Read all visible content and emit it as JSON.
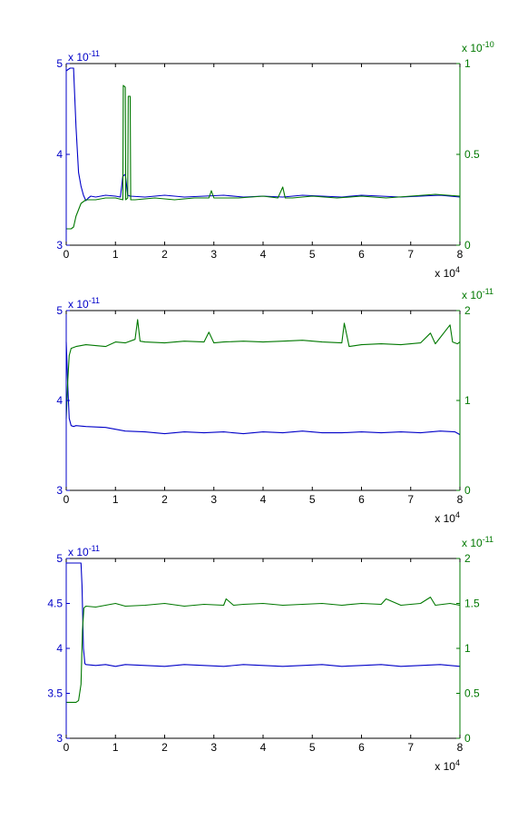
{
  "colors": {
    "left_axis": "#0000c8",
    "right_axis": "#007800",
    "axis": "#000000",
    "background": "#ffffff"
  },
  "chart_data": [
    {
      "type": "line",
      "xlim": [
        0,
        8
      ],
      "xticks": [
        "0",
        "1",
        "2",
        "3",
        "4",
        "5",
        "6",
        "7",
        "8"
      ],
      "x_multiplier": [
        "x 10",
        "4"
      ],
      "y_left": {
        "lim": [
          3,
          5
        ],
        "ticks": [
          "3",
          "4",
          "5"
        ],
        "ticks_at": [
          3,
          4,
          5
        ],
        "multiplier": [
          "x 10",
          "-11"
        ],
        "color": "#0000c8"
      },
      "y_right": {
        "lim": [
          0,
          1
        ],
        "ticks": [
          "0",
          "0.5",
          "1"
        ],
        "ticks_at": [
          0,
          0.5,
          1
        ],
        "multiplier": [
          "x 10",
          "-10"
        ],
        "color": "#007800"
      },
      "series": [
        {
          "axis": "left",
          "color": "#0000c8",
          "x": [
            0,
            0.08,
            0.15,
            0.16,
            0.2,
            0.25,
            0.3,
            0.35,
            0.4,
            0.45,
            0.5,
            0.6,
            0.8,
            1.0,
            1.1,
            1.15,
            1.2,
            1.25,
            1.3,
            1.6,
            2.0,
            2.4,
            2.8,
            3.2,
            3.6,
            4.0,
            4.4,
            4.8,
            5.2,
            5.6,
            6.0,
            6.4,
            6.8,
            7.2,
            7.6,
            8.0
          ],
          "y": [
            4.92,
            4.95,
            4.95,
            4.8,
            4.3,
            3.8,
            3.65,
            3.55,
            3.49,
            3.52,
            3.54,
            3.53,
            3.55,
            3.54,
            3.53,
            3.76,
            3.78,
            3.55,
            3.54,
            3.53,
            3.55,
            3.53,
            3.54,
            3.55,
            3.53,
            3.54,
            3.53,
            3.55,
            3.54,
            3.53,
            3.55,
            3.54,
            3.53,
            3.54,
            3.55,
            3.53
          ]
        },
        {
          "axis": "right",
          "color": "#007800",
          "x": [
            0,
            0.1,
            0.15,
            0.2,
            0.3,
            0.4,
            0.6,
            0.8,
            1.0,
            1.15,
            1.16,
            1.2,
            1.21,
            1.25,
            1.26,
            1.3,
            1.31,
            1.4,
            1.8,
            2.2,
            2.6,
            2.9,
            2.95,
            3.0,
            3.1,
            3.5,
            4.0,
            4.3,
            4.4,
            4.45,
            4.6,
            5.0,
            5.5,
            6.0,
            6.5,
            7.0,
            7.5,
            8.0
          ],
          "y": [
            0.09,
            0.09,
            0.1,
            0.16,
            0.23,
            0.25,
            0.25,
            0.26,
            0.26,
            0.25,
            0.88,
            0.87,
            0.25,
            0.26,
            0.82,
            0.82,
            0.25,
            0.25,
            0.26,
            0.25,
            0.26,
            0.26,
            0.3,
            0.26,
            0.26,
            0.26,
            0.27,
            0.26,
            0.32,
            0.26,
            0.26,
            0.27,
            0.26,
            0.27,
            0.26,
            0.27,
            0.28,
            0.27
          ]
        }
      ]
    },
    {
      "type": "line",
      "xlim": [
        0,
        8
      ],
      "xticks": [
        "0",
        "1",
        "2",
        "3",
        "4",
        "5",
        "6",
        "7",
        "8"
      ],
      "x_multiplier": [
        "x 10",
        "4"
      ],
      "y_left": {
        "lim": [
          3,
          5
        ],
        "ticks": [
          "3",
          "4",
          "5"
        ],
        "ticks_at": [
          3,
          4,
          5
        ],
        "multiplier": [
          "x 10",
          "-11"
        ],
        "color": "#0000c8"
      },
      "y_right": {
        "lim": [
          0,
          2
        ],
        "ticks": [
          "0",
          "1",
          "2"
        ],
        "ticks_at": [
          0,
          1,
          2
        ],
        "multiplier": [
          "x 10",
          "-11"
        ],
        "color": "#007800"
      },
      "series": [
        {
          "axis": "left",
          "color": "#0000c8",
          "x": [
            0,
            0.03,
            0.06,
            0.1,
            0.15,
            0.2,
            0.4,
            0.8,
            1.0,
            1.2,
            1.6,
            2.0,
            2.4,
            2.8,
            3.2,
            3.6,
            4.0,
            4.4,
            4.8,
            5.2,
            5.6,
            6.0,
            6.4,
            6.8,
            7.2,
            7.6,
            7.9,
            8.0
          ],
          "y": [
            4.65,
            4.2,
            3.8,
            3.72,
            3.71,
            3.72,
            3.71,
            3.7,
            3.68,
            3.66,
            3.65,
            3.63,
            3.65,
            3.64,
            3.65,
            3.63,
            3.65,
            3.64,
            3.66,
            3.64,
            3.64,
            3.65,
            3.64,
            3.65,
            3.64,
            3.66,
            3.65,
            3.62
          ]
        },
        {
          "axis": "right",
          "color": "#007800",
          "x": [
            0,
            0.03,
            0.06,
            0.1,
            0.2,
            0.4,
            0.6,
            0.8,
            1.0,
            1.2,
            1.4,
            1.45,
            1.5,
            1.6,
            2.0,
            2.4,
            2.8,
            2.9,
            3.0,
            3.2,
            3.6,
            4.0,
            4.4,
            4.8,
            5.2,
            5.6,
            5.65,
            5.75,
            6.0,
            6.4,
            6.8,
            7.2,
            7.4,
            7.5,
            7.8,
            7.85,
            7.95,
            8.0
          ],
          "y": [
            0.8,
            1.2,
            1.5,
            1.58,
            1.6,
            1.62,
            1.61,
            1.6,
            1.65,
            1.64,
            1.68,
            1.9,
            1.66,
            1.65,
            1.64,
            1.66,
            1.65,
            1.76,
            1.64,
            1.65,
            1.66,
            1.65,
            1.66,
            1.67,
            1.65,
            1.64,
            1.86,
            1.6,
            1.62,
            1.63,
            1.62,
            1.64,
            1.75,
            1.63,
            1.84,
            1.65,
            1.63,
            1.65
          ]
        }
      ]
    },
    {
      "type": "line",
      "xlim": [
        0,
        8
      ],
      "xticks": [
        "0",
        "1",
        "2",
        "3",
        "4",
        "5",
        "6",
        "7",
        "8"
      ],
      "x_multiplier": [
        "x 10",
        "4"
      ],
      "y_left": {
        "lim": [
          3,
          5
        ],
        "ticks": [
          "3",
          "3.5",
          "4",
          "4.5",
          "5"
        ],
        "ticks_at": [
          3,
          3.5,
          4,
          4.5,
          5
        ],
        "multiplier": [
          "x 10",
          "-11"
        ],
        "color": "#0000c8"
      },
      "y_right": {
        "lim": [
          0,
          2
        ],
        "ticks": [
          "0",
          "0.5",
          "1",
          "1.5",
          "2"
        ],
        "ticks_at": [
          0,
          0.5,
          1,
          1.5,
          2
        ],
        "multiplier": [
          "x 10",
          "-11"
        ],
        "color": "#007800"
      },
      "series": [
        {
          "axis": "left",
          "color": "#0000c8",
          "x": [
            0,
            0.1,
            0.2,
            0.3,
            0.32,
            0.35,
            0.38,
            0.4,
            0.6,
            0.8,
            1.0,
            1.2,
            1.6,
            2.0,
            2.4,
            2.8,
            3.2,
            3.6,
            4.0,
            4.4,
            4.8,
            5.2,
            5.6,
            6.0,
            6.4,
            6.8,
            7.2,
            7.6,
            8.0
          ],
          "y": [
            4.95,
            4.95,
            4.95,
            4.95,
            4.7,
            4.0,
            3.83,
            3.82,
            3.81,
            3.82,
            3.8,
            3.82,
            3.81,
            3.8,
            3.82,
            3.81,
            3.8,
            3.82,
            3.81,
            3.8,
            3.81,
            3.82,
            3.8,
            3.81,
            3.82,
            3.8,
            3.81,
            3.82,
            3.8
          ]
        },
        {
          "axis": "right",
          "color": "#007800",
          "x": [
            0,
            0.1,
            0.2,
            0.25,
            0.3,
            0.33,
            0.36,
            0.4,
            0.6,
            0.8,
            1.0,
            1.2,
            1.6,
            2.0,
            2.4,
            2.8,
            3.2,
            3.25,
            3.4,
            3.6,
            4.0,
            4.4,
            4.8,
            5.2,
            5.6,
            6.0,
            6.4,
            6.5,
            6.8,
            7.2,
            7.4,
            7.5,
            7.8,
            8.0
          ],
          "y": [
            0.4,
            0.4,
            0.4,
            0.42,
            0.6,
            1.2,
            1.45,
            1.47,
            1.46,
            1.48,
            1.5,
            1.47,
            1.48,
            1.5,
            1.47,
            1.49,
            1.48,
            1.55,
            1.48,
            1.49,
            1.5,
            1.48,
            1.49,
            1.5,
            1.48,
            1.5,
            1.49,
            1.55,
            1.48,
            1.5,
            1.57,
            1.48,
            1.5,
            1.48
          ]
        }
      ]
    }
  ]
}
